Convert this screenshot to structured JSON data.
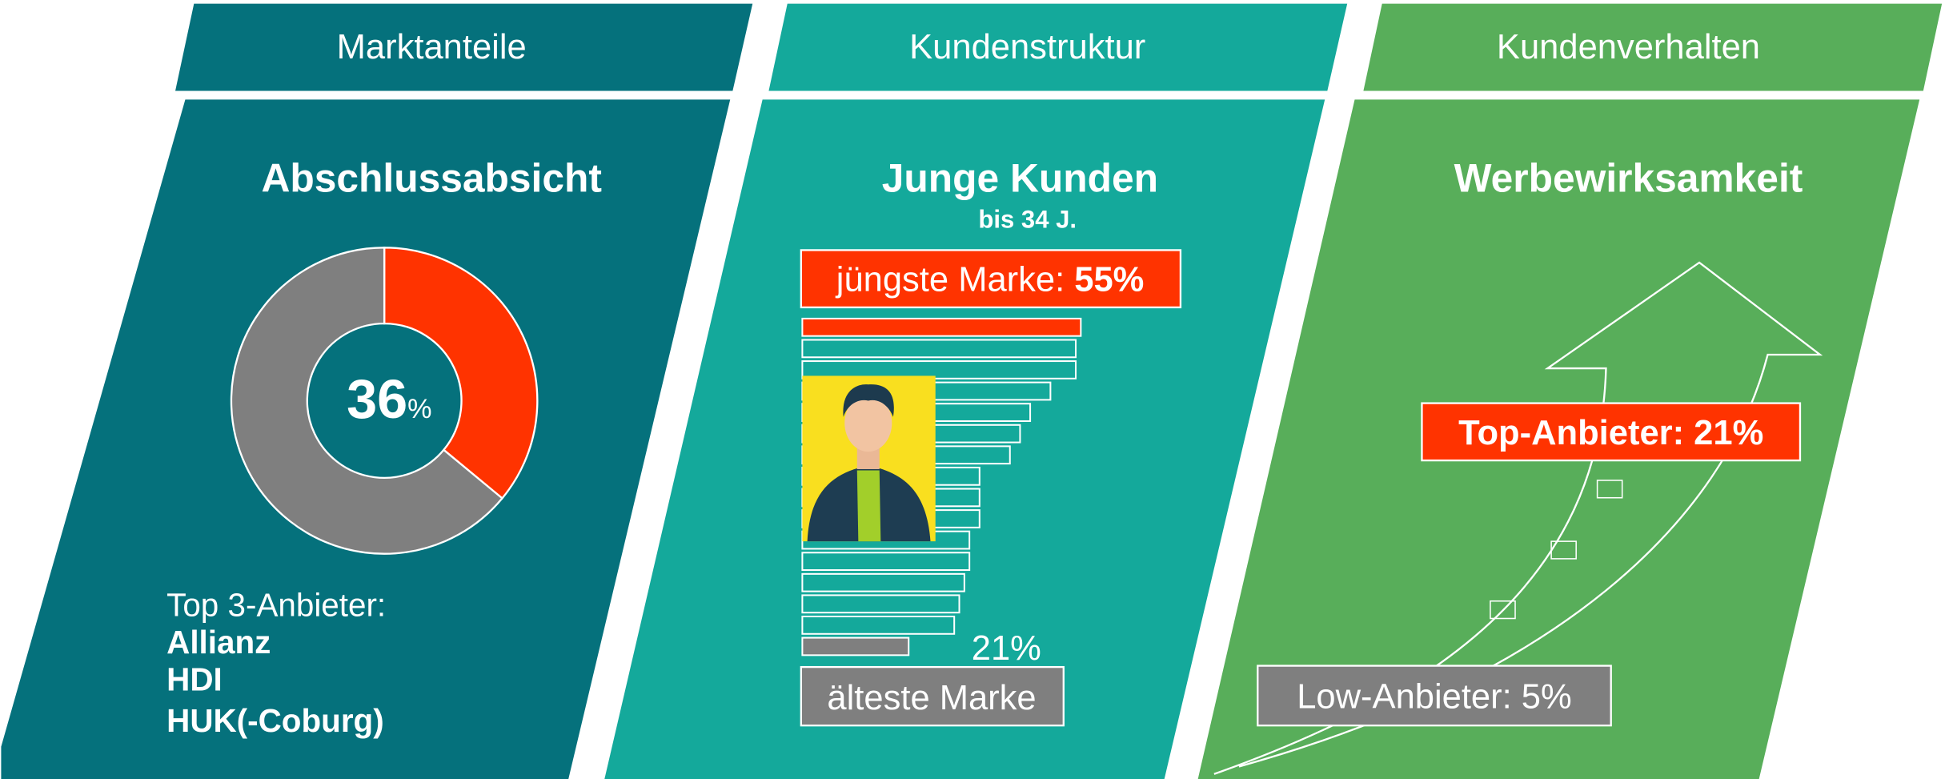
{
  "panels": [
    {
      "header": "Marktanteile",
      "title": "Abschlussabsicht",
      "donut": {
        "value": 36,
        "unit": "%"
      },
      "list_title": "Top 3-Anbieter:",
      "list": [
        "Allianz",
        "HDI",
        "HUK(-Coburg)"
      ]
    },
    {
      "header": "Kundenstruktur",
      "title": "Junge Kunden",
      "subtitle": "bis 34 J.",
      "top_label": "jüngste Marke:",
      "top_value_label": "55%",
      "bars": [
        55,
        54,
        54,
        49,
        45,
        43,
        41,
        35,
        35,
        35,
        33,
        33,
        32,
        31,
        30,
        21
      ],
      "bottom_value_label": "21%",
      "bottom_label": "älteste Marke"
    },
    {
      "header": "Kundenverhalten",
      "title": "Werbewirksamkeit",
      "top_label": "Top-Anbieter: 21%",
      "low_label": "Low-Anbieter: 5%"
    }
  ]
}
